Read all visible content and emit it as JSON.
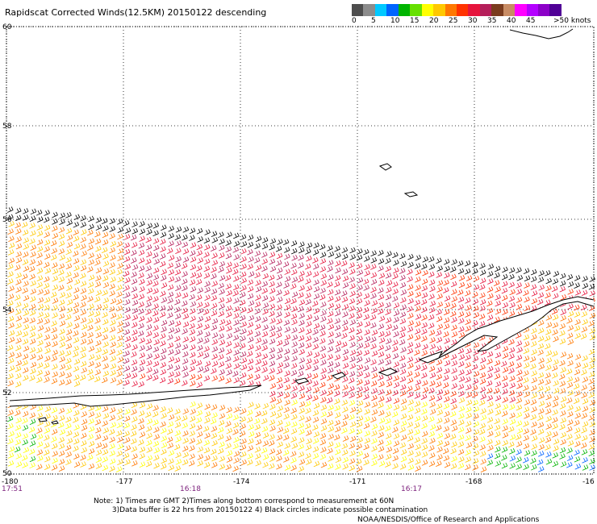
{
  "title": "Rapidscat Corrected Winds(12.5KM) 20150122 descending",
  "scale": {
    "colors": [
      "#4d4d4d",
      "#8c8c8c",
      "#00c8ff",
      "#0064ff",
      "#00b400",
      "#66e000",
      "#ffff00",
      "#ffc800",
      "#ff7800",
      "#ff3200",
      "#e6143c",
      "#b41e5a",
      "#7a3c1e",
      "#c88c64",
      "#ff00ff",
      "#b400ff",
      "#8c00c8",
      "#500096"
    ],
    "labels": [
      "0",
      "5",
      "10",
      "15",
      "20",
      "25",
      "30",
      "35",
      "40",
      "45",
      ">50 knots"
    ]
  },
  "axes": {
    "lat_labels": [
      "60",
      "58",
      "56",
      "54",
      "52",
      "50"
    ],
    "lon_labels": [
      "-180",
      "-177",
      "-174",
      "-171",
      "-168",
      "-16"
    ],
    "times": [
      "17:51",
      "16:18",
      "16:17"
    ]
  },
  "notes": "Note: 1) Times are GMT 2)Times along bottom correspond to measurement at 60N\n        3)Data buffer is 22 hrs from 20150122 4) Black circles indicate possible contamination",
  "credit": "NOAA/NESDIS/Office of Research and Applications"
}
